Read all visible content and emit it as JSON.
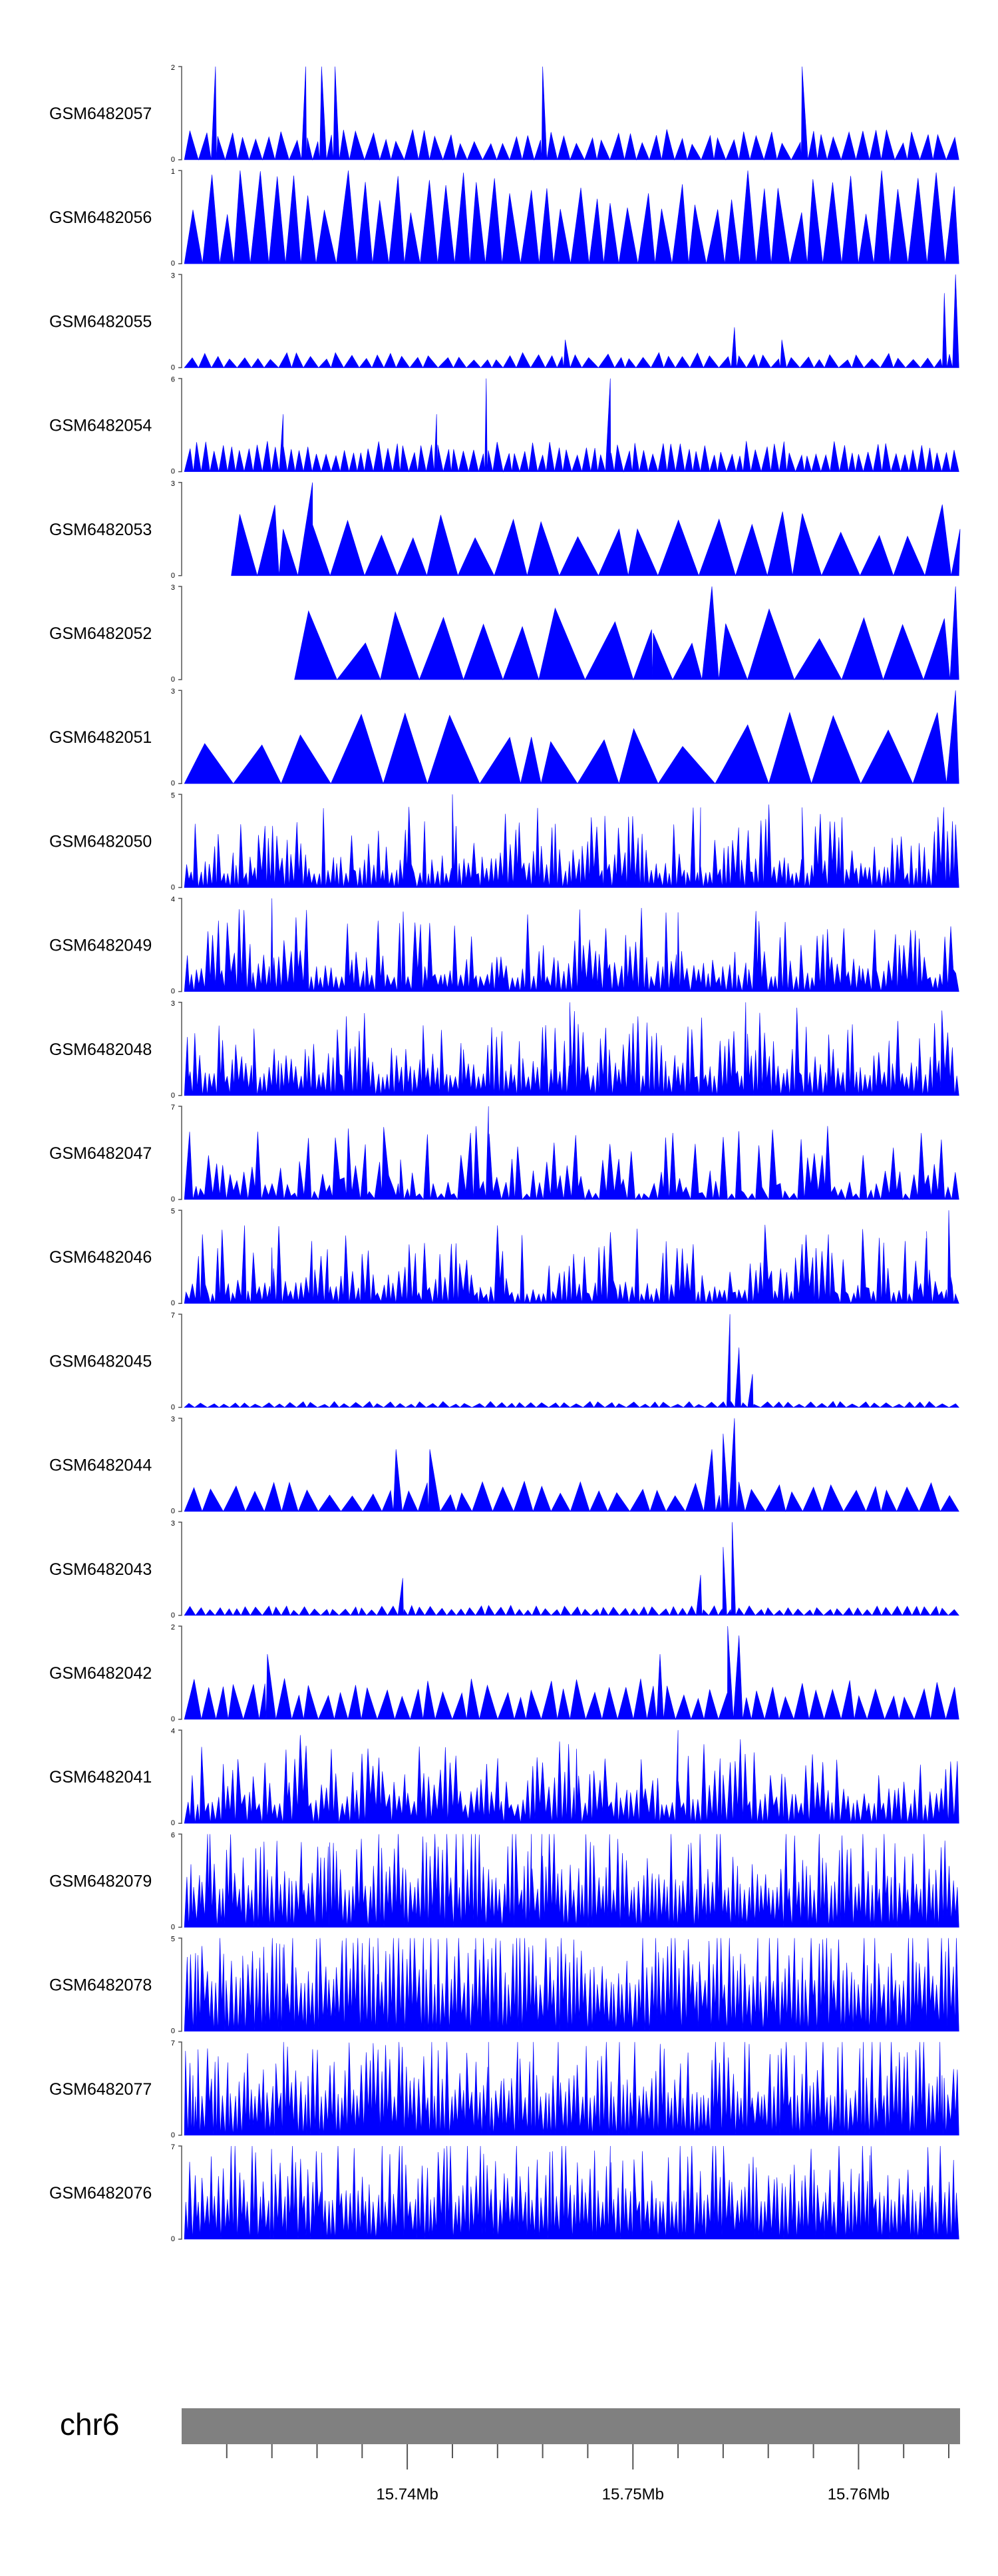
{
  "chart_data": {
    "type": "area",
    "title": "",
    "chromosome": "chr6",
    "genomic_range": [
      15.73,
      15.7645
    ],
    "x_tick_labels": [
      {
        "value": 15.74,
        "label": "15.74Mb"
      },
      {
        "value": 15.75,
        "label": "15.75Mb"
      },
      {
        "value": 15.76,
        "label": "15.76Mb"
      }
    ],
    "minor_tick_step": 0.002,
    "fill_color": "#0000ff",
    "ideogram_color": "#808080",
    "tracks": [
      {
        "name": "GSM6482057",
        "ymax": 2,
        "ymax_label": "2",
        "ymin_label": "0",
        "style": "spike",
        "density": 60,
        "seed": 57,
        "peaks": [
          {
            "x": 15.7315,
            "y": 2
          },
          {
            "x": 15.7355,
            "y": 2
          },
          {
            "x": 15.7362,
            "y": 2
          },
          {
            "x": 15.7368,
            "y": 2
          },
          {
            "x": 15.746,
            "y": 2
          },
          {
            "x": 15.7575,
            "y": 2
          }
        ]
      },
      {
        "name": "GSM6482056",
        "ymax": 1,
        "ymax_label": "1",
        "ymin_label": "0",
        "style": "spike",
        "density": 46,
        "seed": 56,
        "baseline": 0.96,
        "peaks": []
      },
      {
        "name": "GSM6482055",
        "ymax": 3,
        "ymax_label": "3",
        "ymin_label": "0",
        "style": "spike",
        "density": 58,
        "seed": 55,
        "baseline": 0.15,
        "peaks": [
          {
            "x": 15.747,
            "y": 0.9
          },
          {
            "x": 15.7545,
            "y": 1.3
          },
          {
            "x": 15.7566,
            "y": 0.9
          },
          {
            "x": 15.7638,
            "y": 2.4
          },
          {
            "x": 15.7643,
            "y": 3.0
          }
        ]
      },
      {
        "name": "GSM6482054",
        "ymax": 6,
        "ymax_label": "6",
        "ymin_label": "0",
        "style": "spike",
        "density": 90,
        "seed": 54,
        "baseline": 0.3,
        "peaks": [
          {
            "x": 15.7435,
            "y": 6.0
          },
          {
            "x": 15.749,
            "y": 6.0
          },
          {
            "x": 15.7345,
            "y": 3.7
          },
          {
            "x": 15.7413,
            "y": 3.7
          }
        ]
      },
      {
        "name": "GSM6482053",
        "ymax": 3,
        "ymax_label": "3",
        "ymin_label": "0",
        "style": "spike",
        "density": 22,
        "seed": 53,
        "start": 15.7322,
        "baseline": 0.7,
        "peaks": [
          {
            "x": 15.7358,
            "y": 3.0
          },
          {
            "x": 15.7345,
            "y": 1.5
          },
          {
            "x": 15.7645,
            "y": 1.5
          }
        ]
      },
      {
        "name": "GSM6482052",
        "ymax": 3,
        "ymax_label": "3",
        "ymin_label": "0",
        "style": "spike",
        "density": 16,
        "seed": 52,
        "start": 15.735,
        "baseline": 0.7,
        "peaks": [
          {
            "x": 15.7535,
            "y": 3.0
          },
          {
            "x": 15.7643,
            "y": 3.0
          },
          {
            "x": 15.7509,
            "y": 1.5
          }
        ]
      },
      {
        "name": "GSM6482051",
        "ymax": 3,
        "ymax_label": "3",
        "ymin_label": "0",
        "style": "spike",
        "density": 16,
        "seed": 51,
        "baseline": 0.7,
        "peaks": [
          {
            "x": 15.7643,
            "y": 3.0
          },
          {
            "x": 15.7455,
            "y": 1.5
          }
        ]
      },
      {
        "name": "GSM6482050",
        "ymax": 5,
        "ymax_label": "5",
        "ymin_label": "0",
        "style": "dense",
        "density": 170,
        "seed": 50,
        "baseline": 0.15,
        "peaks": [
          {
            "x": 15.742,
            "y": 5.0
          },
          {
            "x": 15.7575,
            "y": 4.3
          },
          {
            "x": 15.753,
            "y": 4.3
          }
        ]
      },
      {
        "name": "GSM6482049",
        "ymax": 4,
        "ymax_label": "4",
        "ymin_label": "0",
        "style": "dense",
        "density": 150,
        "seed": 49,
        "baseline": 0.15,
        "peaks": [
          {
            "x": 15.734,
            "y": 4.0
          },
          {
            "x": 15.752,
            "y": 3.4
          }
        ]
      },
      {
        "name": "GSM6482048",
        "ymax": 3,
        "ymax_label": "3",
        "ymin_label": "0",
        "style": "dense",
        "density": 170,
        "seed": 48,
        "baseline": 0.2,
        "peaks": [
          {
            "x": 15.755,
            "y": 3.0
          },
          {
            "x": 15.7472,
            "y": 3.0
          }
        ]
      },
      {
        "name": "GSM6482047",
        "ymax": 7,
        "ymax_label": "7",
        "ymin_label": "0",
        "style": "dense",
        "density": 110,
        "seed": 47,
        "baseline": 0.06,
        "peaks": [
          {
            "x": 15.7436,
            "y": 7.0
          },
          {
            "x": 15.7397,
            "y": 3.0
          }
        ]
      },
      {
        "name": "GSM6482046",
        "ymax": 5,
        "ymax_label": "5",
        "ymin_label": "0",
        "style": "dense",
        "density": 150,
        "seed": 46,
        "baseline": 0.1,
        "peaks": [
          {
            "x": 15.764,
            "y": 5.0
          },
          {
            "x": 15.763,
            "y": 3.5
          },
          {
            "x": 15.734,
            "y": 3.0
          }
        ]
      },
      {
        "name": "GSM6482045",
        "ymax": 7,
        "ymax_label": "7",
        "ymin_label": "0",
        "style": "spike",
        "density": 70,
        "seed": 45,
        "baseline": 0.06,
        "peaks": [
          {
            "x": 15.7543,
            "y": 7.0
          },
          {
            "x": 15.7547,
            "y": 4.5
          },
          {
            "x": 15.7553,
            "y": 2.5
          }
        ]
      },
      {
        "name": "GSM6482044",
        "ymax": 3,
        "ymax_label": "3",
        "ymin_label": "0",
        "style": "spike",
        "density": 40,
        "seed": 44,
        "baseline": 0.3,
        "peaks": [
          {
            "x": 15.7545,
            "y": 3.0
          },
          {
            "x": 15.754,
            "y": 2.5
          },
          {
            "x": 15.7535,
            "y": 2.0
          },
          {
            "x": 15.741,
            "y": 2.0
          },
          {
            "x": 15.7395,
            "y": 2.0
          }
        ]
      },
      {
        "name": "GSM6482043",
        "ymax": 3,
        "ymax_label": "3",
        "ymin_label": "0",
        "style": "spike",
        "density": 80,
        "seed": 43,
        "baseline": 0.1,
        "peaks": [
          {
            "x": 15.7544,
            "y": 3.0
          },
          {
            "x": 15.754,
            "y": 2.2
          },
          {
            "x": 15.753,
            "y": 1.3
          },
          {
            "x": 15.7398,
            "y": 1.2
          }
        ]
      },
      {
        "name": "GSM6482042",
        "ymax": 2,
        "ymax_label": "2",
        "ymin_label": "0",
        "style": "spike",
        "density": 52,
        "seed": 42,
        "baseline": 0.4,
        "peaks": [
          {
            "x": 15.7542,
            "y": 2.0
          },
          {
            "x": 15.7547,
            "y": 1.8
          },
          {
            "x": 15.7338,
            "y": 1.4
          },
          {
            "x": 15.7512,
            "y": 1.4
          }
        ]
      },
      {
        "name": "GSM6482041",
        "ymax": 4,
        "ymax_label": "4",
        "ymin_label": "0",
        "style": "dense",
        "density": 150,
        "seed": 41,
        "baseline": 0.2,
        "peaks": [
          {
            "x": 15.752,
            "y": 4.0
          },
          {
            "x": 15.7475,
            "y": 3.2
          }
        ]
      },
      {
        "name": "GSM6482079",
        "ymax": 6,
        "ymax_label": "6",
        "ymin_label": "0",
        "style": "dense",
        "density": 190,
        "seed": 79,
        "baseline": 0.4,
        "peaks": [
          {
            "x": 15.7455,
            "y": 6.0
          },
          {
            "x": 15.7365,
            "y": 5.2
          },
          {
            "x": 15.746,
            "y": 4.6
          }
        ]
      },
      {
        "name": "GSM6482078",
        "ymax": 5,
        "ymax_label": "5",
        "ymin_label": "0",
        "style": "dense",
        "density": 190,
        "seed": 78,
        "baseline": 0.5,
        "peaks": [
          {
            "x": 15.7387,
            "y": 5.0
          },
          {
            "x": 15.7345,
            "y": 4.5
          },
          {
            "x": 15.743,
            "y": 4.4
          }
        ]
      },
      {
        "name": "GSM6482077",
        "ymax": 7,
        "ymax_label": "7",
        "ymin_label": "0",
        "style": "dense",
        "density": 190,
        "seed": 77,
        "baseline": 0.4,
        "peaks": [
          {
            "x": 15.7436,
            "y": 7.0
          },
          {
            "x": 15.7305,
            "y": 4.5
          },
          {
            "x": 15.7637,
            "y": 4.5
          }
        ]
      },
      {
        "name": "GSM6482076",
        "ymax": 7,
        "ymax_label": "7",
        "ymin_label": "0",
        "style": "dense",
        "density": 190,
        "seed": 76,
        "baseline": 0.4,
        "peaks": [
          {
            "x": 15.749,
            "y": 7.0
          },
          {
            "x": 15.7362,
            "y": 6.5
          },
          {
            "x": 15.7605,
            "y": 6.3
          }
        ]
      }
    ]
  }
}
